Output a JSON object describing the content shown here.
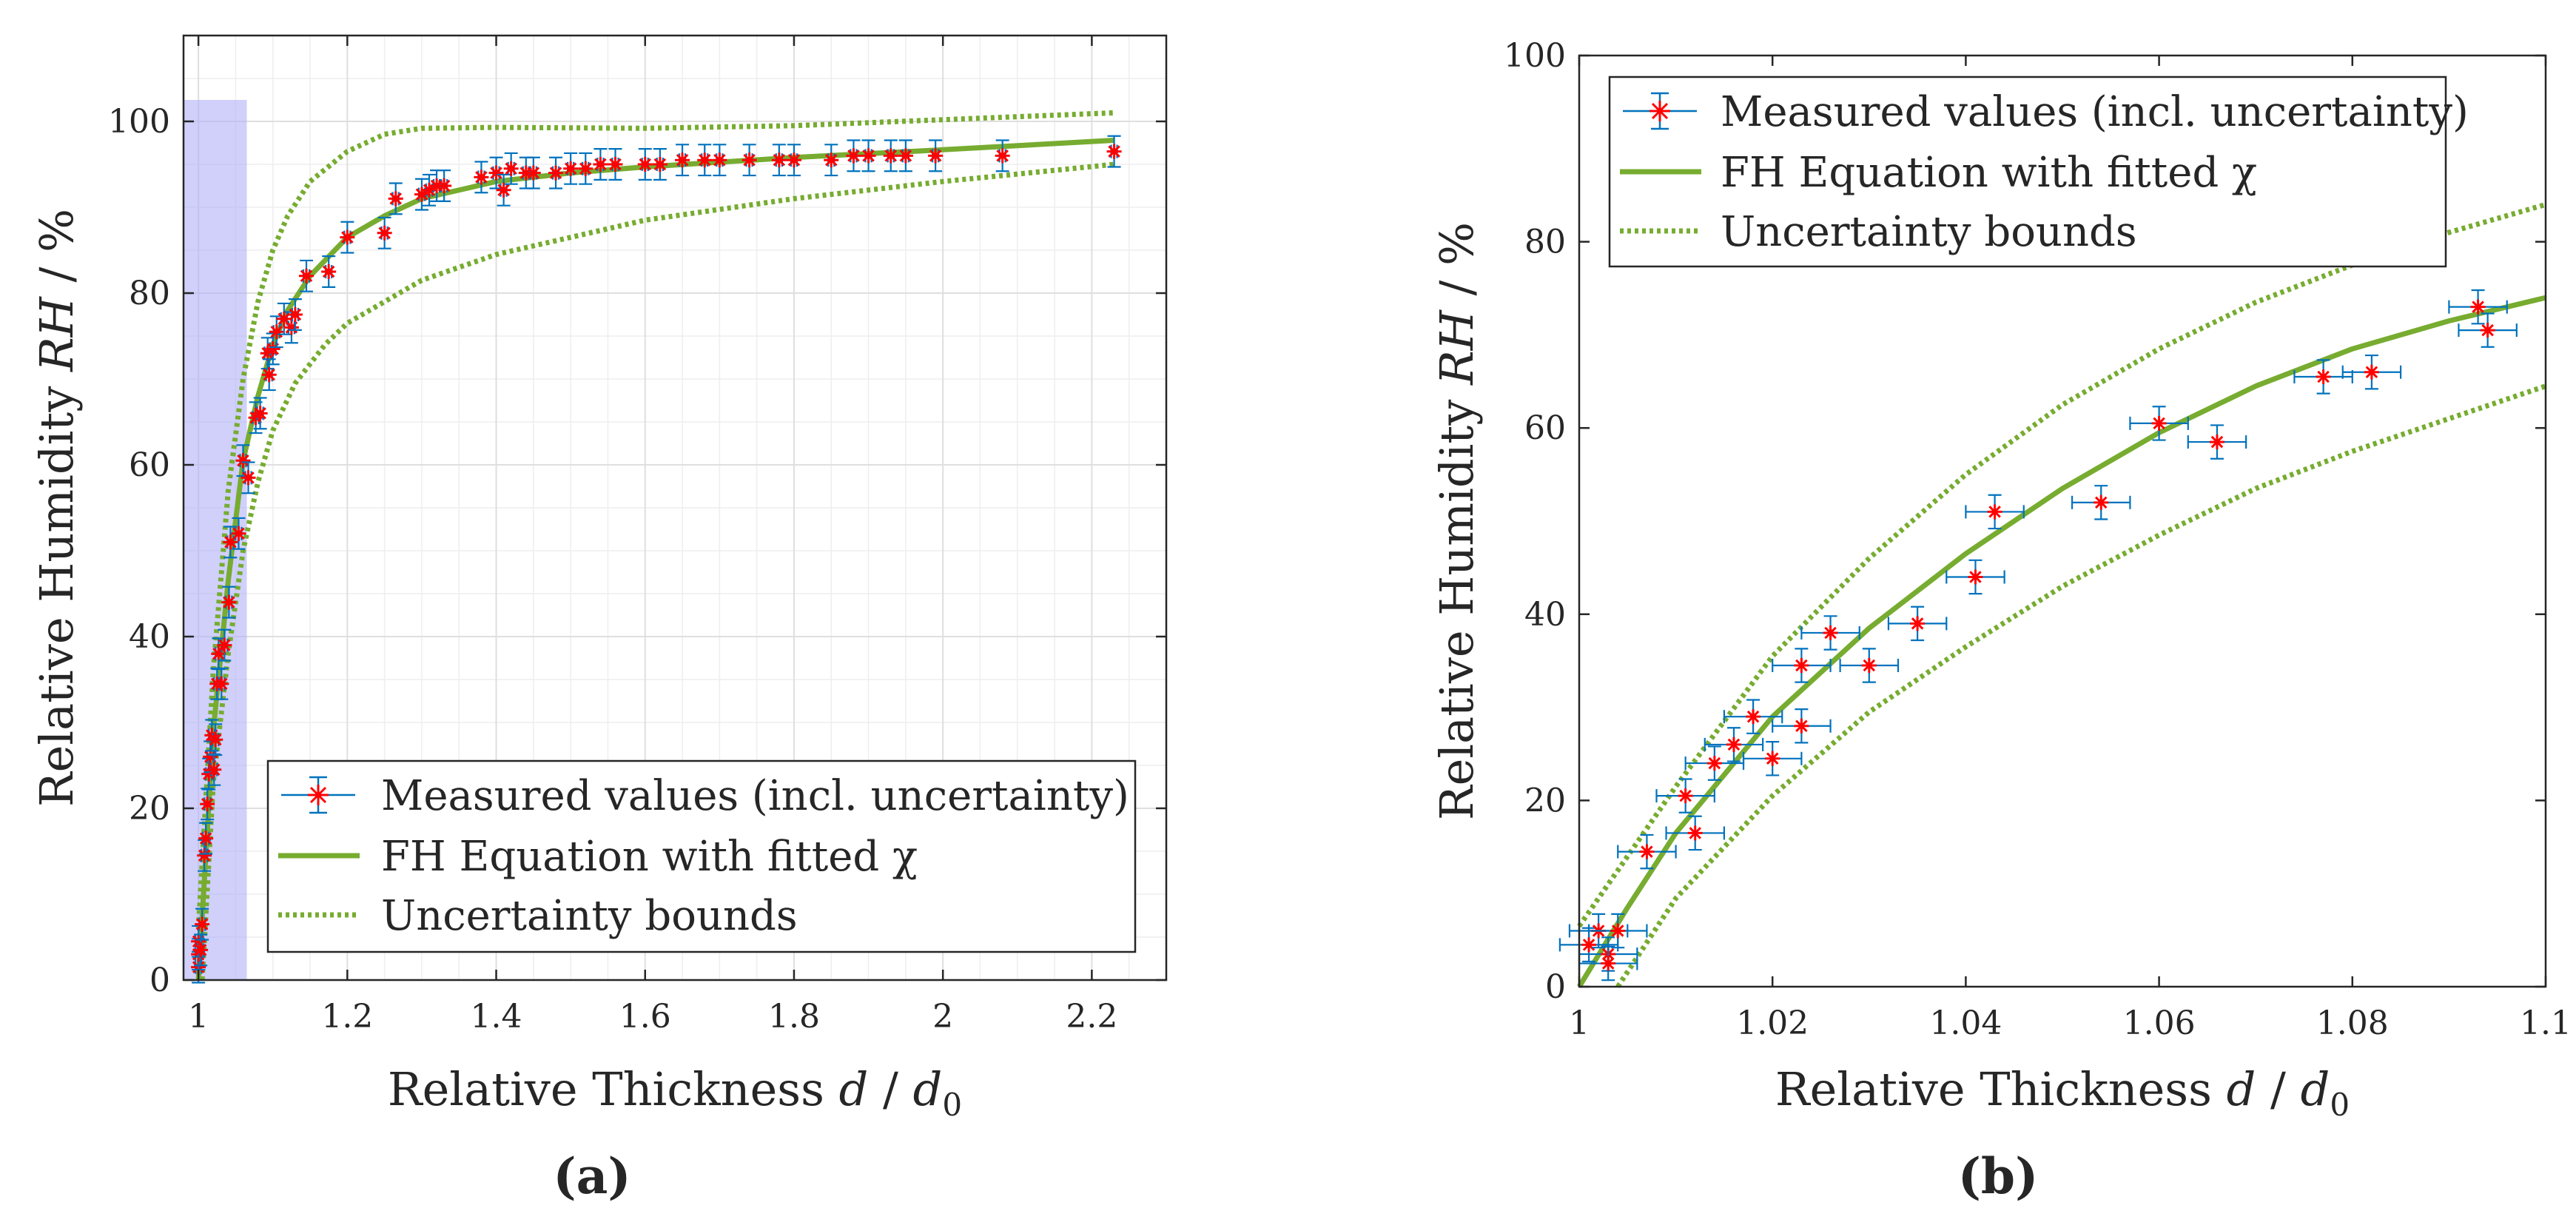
{
  "colors": {
    "fit": "#77AC30",
    "bounds": "#77AC30",
    "marker": "#FF0000",
    "errorbar": "#0072BD",
    "highlight": "#B0B0F8",
    "grid": "#DFDFDF",
    "axis": "#262626"
  },
  "chart_data": [
    {
      "panel": "(a)",
      "type": "scatter",
      "xlabel": "Relative Thickness d / d0",
      "xlabel_parts": {
        "main": "Relative Thickness ",
        "var": "d",
        "sep": " / ",
        "base": "d",
        "sub": "0"
      },
      "ylabel": "Relative Humidity RH / %",
      "ylabel_parts": {
        "main": "Relative Humidity ",
        "var": "RH",
        "sep": " / %"
      },
      "xlim": [
        0.98,
        2.3
      ],
      "ylim": [
        0,
        110
      ],
      "xticks": [
        1,
        1.2,
        1.4,
        1.6,
        1.8,
        2,
        2.2
      ],
      "xtick_labels": [
        "1",
        "1.2",
        "1.4",
        "1.6",
        "1.8",
        "2",
        "2.2"
      ],
      "yticks": [
        0,
        20,
        40,
        60,
        80,
        100
      ],
      "ytick_labels": [
        "0",
        "20",
        "40",
        "60",
        "80",
        "100"
      ],
      "grid": true,
      "highlight_region": {
        "x": [
          0.98,
          1.065
        ],
        "y": [
          0,
          102.5
        ]
      },
      "legend": {
        "position": "bottom-right",
        "entries": [
          "Measured values (incl. uncertainty)",
          "FH Equation with fitted χ",
          "Uncertainty bounds"
        ]
      },
      "measured": {
        "name": "Measured values (incl. uncertainty)",
        "x_err": 0.004,
        "y_err": 1.8,
        "points": [
          [
            1.0,
            1.5
          ],
          [
            1.0,
            3.0
          ],
          [
            1.0,
            4.5
          ],
          [
            1.003,
            3.5
          ],
          [
            1.005,
            6.5
          ],
          [
            1.008,
            14.5
          ],
          [
            1.01,
            16.5
          ],
          [
            1.012,
            20.5
          ],
          [
            1.014,
            24.0
          ],
          [
            1.016,
            26.0
          ],
          [
            1.018,
            28.5
          ],
          [
            1.021,
            24.5
          ],
          [
            1.023,
            28.0
          ],
          [
            1.025,
            34.5
          ],
          [
            1.027,
            38.0
          ],
          [
            1.031,
            34.5
          ],
          [
            1.035,
            39.0
          ],
          [
            1.041,
            44.0
          ],
          [
            1.043,
            51.0
          ],
          [
            1.054,
            52.0
          ],
          [
            1.06,
            60.5
          ],
          [
            1.067,
            58.5
          ],
          [
            1.077,
            65.5
          ],
          [
            1.083,
            66.0
          ],
          [
            1.093,
            73.0
          ],
          [
            1.095,
            70.5
          ],
          [
            1.1,
            73.5
          ],
          [
            1.105,
            75.5
          ],
          [
            1.115,
            77.0
          ],
          [
            1.125,
            76.0
          ],
          [
            1.13,
            77.5
          ],
          [
            1.145,
            82.0
          ],
          [
            1.175,
            82.5
          ],
          [
            1.2,
            86.5
          ],
          [
            1.25,
            87.0
          ],
          [
            1.265,
            91.0
          ],
          [
            1.3,
            91.5
          ],
          [
            1.31,
            92.0
          ],
          [
            1.32,
            92.5
          ],
          [
            1.33,
            92.5
          ],
          [
            1.38,
            93.5
          ],
          [
            1.4,
            94.0
          ],
          [
            1.41,
            92.0
          ],
          [
            1.42,
            94.5
          ],
          [
            1.44,
            94.0
          ],
          [
            1.45,
            94.0
          ],
          [
            1.48,
            94.0
          ],
          [
            1.5,
            94.5
          ],
          [
            1.52,
            94.5
          ],
          [
            1.54,
            95.0
          ],
          [
            1.56,
            95.0
          ],
          [
            1.6,
            95.0
          ],
          [
            1.62,
            95.0
          ],
          [
            1.65,
            95.5
          ],
          [
            1.68,
            95.5
          ],
          [
            1.7,
            95.5
          ],
          [
            1.74,
            95.5
          ],
          [
            1.78,
            95.5
          ],
          [
            1.8,
            95.5
          ],
          [
            1.85,
            95.5
          ],
          [
            1.88,
            96.0
          ],
          [
            1.9,
            96.0
          ],
          [
            1.93,
            96.0
          ],
          [
            1.95,
            96.0
          ],
          [
            1.99,
            96.0
          ],
          [
            2.08,
            96.0
          ],
          [
            2.23,
            96.5
          ]
        ]
      },
      "fit": {
        "name": "FH Equation with fitted χ",
        "points": [
          [
            1.0,
            0
          ],
          [
            1.02,
            29
          ],
          [
            1.04,
            46.5
          ],
          [
            1.06,
            60.5
          ],
          [
            1.08,
            68
          ],
          [
            1.1,
            74
          ],
          [
            1.12,
            78
          ],
          [
            1.15,
            82
          ],
          [
            1.2,
            86.5
          ],
          [
            1.25,
            89
          ],
          [
            1.3,
            91
          ],
          [
            1.4,
            93
          ],
          [
            1.5,
            94
          ],
          [
            1.6,
            94.7
          ],
          [
            1.8,
            95.8
          ],
          [
            2.0,
            96.7
          ],
          [
            2.23,
            97.8
          ]
        ]
      },
      "upper_bound": {
        "name": "Uncertainty bounds",
        "points": [
          [
            1.0,
            6
          ],
          [
            1.02,
            36
          ],
          [
            1.04,
            57
          ],
          [
            1.06,
            70
          ],
          [
            1.08,
            79
          ],
          [
            1.1,
            85
          ],
          [
            1.12,
            89
          ],
          [
            1.15,
            93
          ],
          [
            1.2,
            96.5
          ],
          [
            1.25,
            98.5
          ],
          [
            1.3,
            99.2
          ],
          [
            1.4,
            99.3
          ],
          [
            1.6,
            99.2
          ],
          [
            1.8,
            99.5
          ],
          [
            2.0,
            100.2
          ],
          [
            2.23,
            101
          ]
        ]
      },
      "lower_bound": {
        "name": "Uncertainty bounds",
        "points": [
          [
            1.005,
            0
          ],
          [
            1.02,
            23
          ],
          [
            1.04,
            38
          ],
          [
            1.06,
            50
          ],
          [
            1.08,
            58
          ],
          [
            1.1,
            64
          ],
          [
            1.13,
            69.5
          ],
          [
            1.17,
            74
          ],
          [
            1.2,
            76.5
          ],
          [
            1.25,
            79
          ],
          [
            1.3,
            81.5
          ],
          [
            1.4,
            84.5
          ],
          [
            1.5,
            86.5
          ],
          [
            1.6,
            88.5
          ],
          [
            1.8,
            91
          ],
          [
            2.0,
            93
          ],
          [
            2.23,
            95
          ]
        ]
      }
    },
    {
      "panel": "(b)",
      "type": "scatter",
      "xlabel": "Relative Thickness d / d0",
      "xlabel_parts": {
        "main": "Relative Thickness ",
        "var": "d",
        "sep": " / ",
        "base": "d",
        "sub": "0"
      },
      "ylabel": "Relative Humidity RH / %",
      "ylabel_parts": {
        "main": "Relative Humidity ",
        "var": "RH",
        "sep": " / %"
      },
      "xlim": [
        1,
        1.1
      ],
      "ylim": [
        0,
        100
      ],
      "xticks": [
        1,
        1.02,
        1.04,
        1.06,
        1.08,
        1.1
      ],
      "xtick_labels": [
        "1",
        "1.02",
        "1.04",
        "1.06",
        "1.08",
        "1.1"
      ],
      "yticks": [
        0,
        20,
        40,
        60,
        80,
        100
      ],
      "ytick_labels": [
        "0",
        "20",
        "40",
        "60",
        "80",
        "100"
      ],
      "grid": false,
      "legend": {
        "position": "top-left",
        "entries": [
          "Measured values (incl. uncertainty)",
          "FH Equation with fitted χ",
          "Uncertainty bounds"
        ]
      },
      "measured": {
        "name": "Measured values (incl. uncertainty)",
        "x_err": 0.003,
        "y_err": 1.8,
        "points": [
          [
            1.001,
            4.5
          ],
          [
            1.002,
            6.0
          ],
          [
            1.003,
            3.5
          ],
          [
            1.003,
            2.5
          ],
          [
            1.004,
            6.0
          ],
          [
            1.007,
            14.5
          ],
          [
            1.011,
            20.5
          ],
          [
            1.012,
            16.5
          ],
          [
            1.014,
            24.0
          ],
          [
            1.016,
            26.0
          ],
          [
            1.018,
            29.0
          ],
          [
            1.02,
            24.5
          ],
          [
            1.023,
            34.5
          ],
          [
            1.023,
            28.0
          ],
          [
            1.026,
            38.0
          ],
          [
            1.03,
            34.5
          ],
          [
            1.035,
            39.0
          ],
          [
            1.041,
            44.0
          ],
          [
            1.043,
            51.0
          ],
          [
            1.054,
            52.0
          ],
          [
            1.06,
            60.5
          ],
          [
            1.066,
            58.5
          ],
          [
            1.077,
            65.5
          ],
          [
            1.082,
            66.0
          ],
          [
            1.093,
            73.0
          ],
          [
            1.094,
            70.5
          ]
        ]
      },
      "fit": {
        "name": "FH Equation with fitted χ",
        "points": [
          [
            1.0,
            0
          ],
          [
            1.005,
            8.5
          ],
          [
            1.01,
            16.5
          ],
          [
            1.02,
            29
          ],
          [
            1.03,
            38.5
          ],
          [
            1.04,
            46.5
          ],
          [
            1.05,
            53.5
          ],
          [
            1.06,
            59.5
          ],
          [
            1.07,
            64.5
          ],
          [
            1.08,
            68.5
          ],
          [
            1.09,
            71.5
          ],
          [
            1.1,
            74
          ]
        ]
      },
      "upper_bound": {
        "name": "Uncertainty bounds",
        "points": [
          [
            1.0,
            6.5
          ],
          [
            1.005,
            14
          ],
          [
            1.01,
            21.5
          ],
          [
            1.02,
            35.5
          ],
          [
            1.03,
            46
          ],
          [
            1.04,
            55
          ],
          [
            1.05,
            62.5
          ],
          [
            1.06,
            68.5
          ],
          [
            1.07,
            73.5
          ],
          [
            1.08,
            77.5
          ],
          [
            1.09,
            81
          ],
          [
            1.1,
            84
          ]
        ]
      },
      "lower_bound": {
        "name": "Uncertainty bounds",
        "points": [
          [
            1.004,
            0
          ],
          [
            1.01,
            9.5
          ],
          [
            1.02,
            20.5
          ],
          [
            1.03,
            29.5
          ],
          [
            1.04,
            36.5
          ],
          [
            1.05,
            43
          ],
          [
            1.06,
            48.5
          ],
          [
            1.07,
            53.5
          ],
          [
            1.08,
            57.5
          ],
          [
            1.09,
            61
          ],
          [
            1.1,
            64.5
          ]
        ]
      }
    }
  ]
}
